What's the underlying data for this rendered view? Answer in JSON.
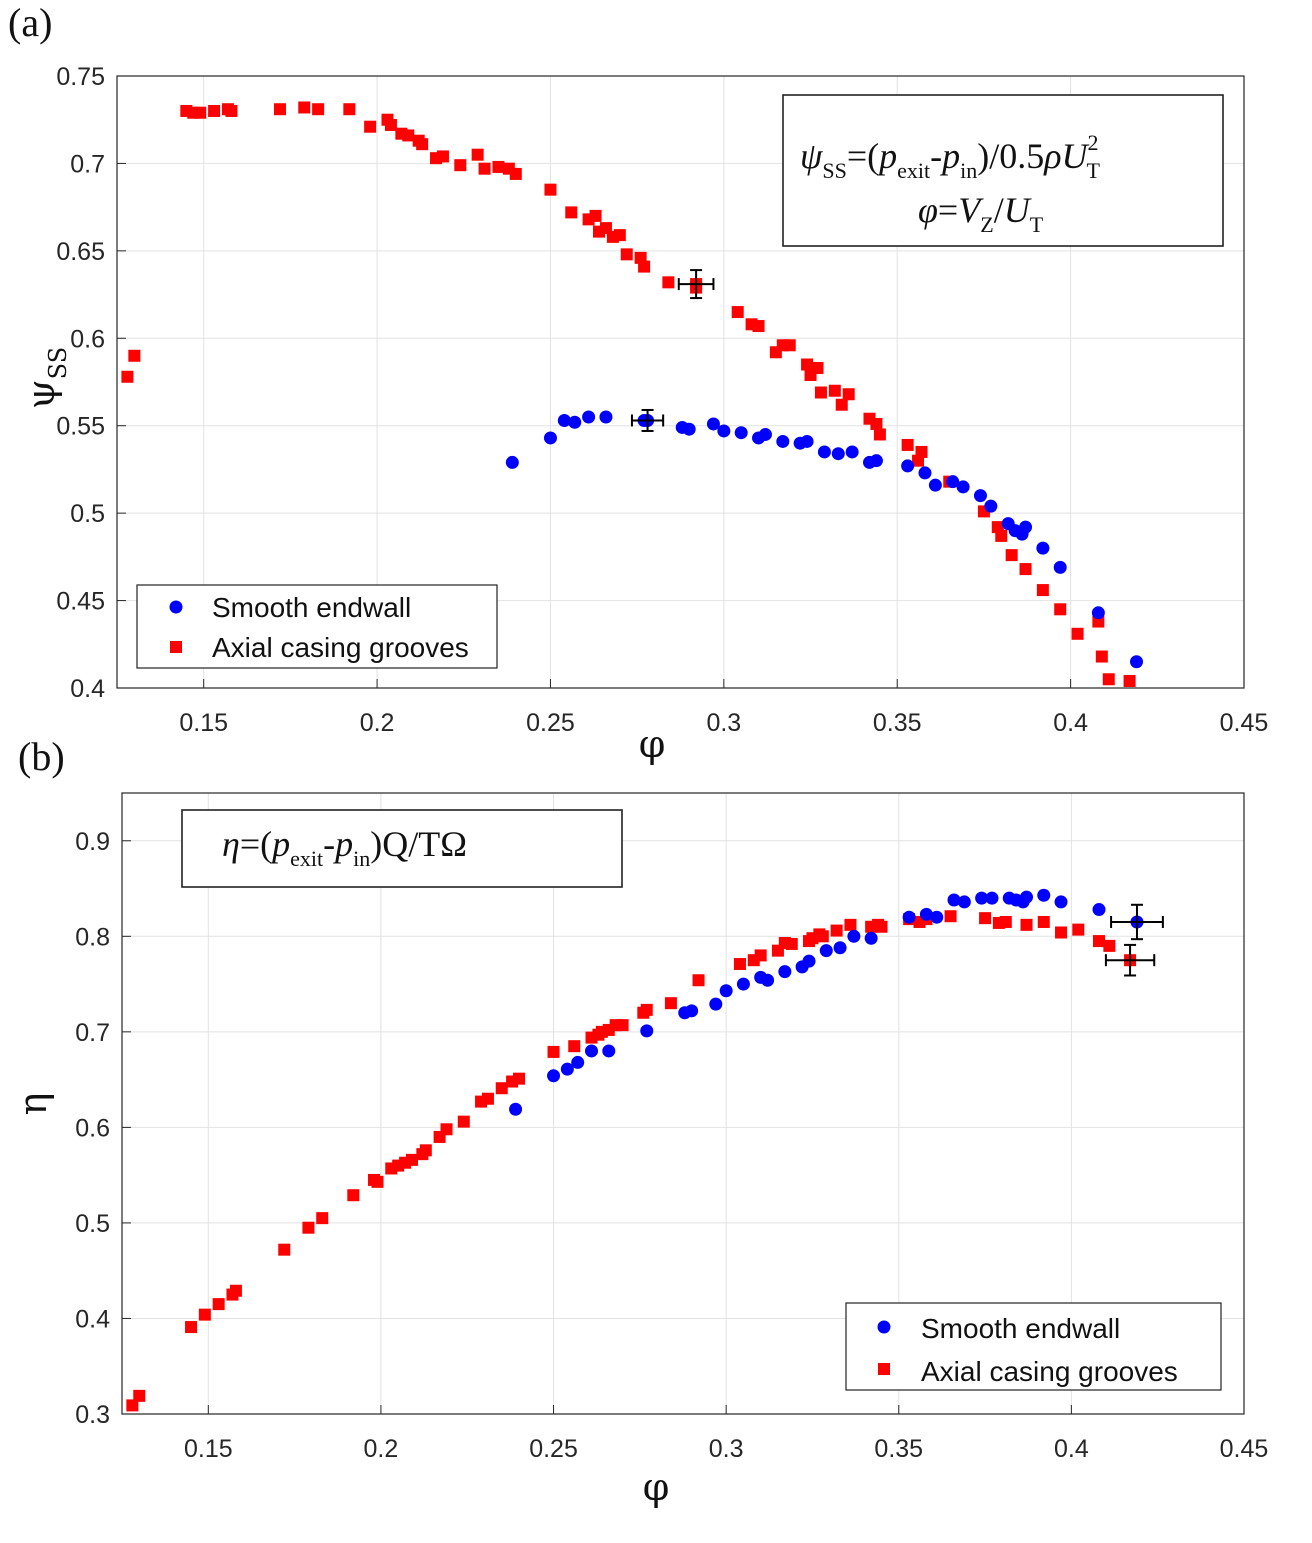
{
  "colors": {
    "smooth": "#0000ff",
    "grooves": "#ff0000",
    "errorbar": "#000000"
  },
  "chart_data": [
    {
      "type": "scatter",
      "panel_label": "(a)",
      "xlabel": "φ",
      "ylabel": "ψ",
      "ylabel_sub": "SS",
      "xlim": [
        0.125,
        0.45
      ],
      "ylim": [
        0.4,
        0.75
      ],
      "xticks": [
        0.15,
        0.2,
        0.25,
        0.3,
        0.35,
        0.4,
        0.45
      ],
      "xtick_labels": [
        "0.15",
        "0.2",
        "0.25",
        "0.3",
        "0.35",
        "0.4",
        "0.45"
      ],
      "yticks": [
        0.4,
        0.45,
        0.5,
        0.55,
        0.6,
        0.65,
        0.7,
        0.75
      ],
      "ytick_labels": [
        "0.4",
        "0.45",
        "0.5",
        "0.55",
        "0.6",
        "0.65",
        "0.7",
        "0.75"
      ],
      "legend": {
        "position": "bottom-left",
        "entries": [
          "Smooth endwall",
          "Axial casing grooves"
        ]
      },
      "annotation": {
        "line1": {
          "psi": "ψ",
          "psi_sub": "SS",
          "eq": "=(",
          "p1": "p",
          "p1_sub": "exit",
          "dash": "-",
          "p2": "p",
          "p2_sub": "in",
          "rest": ")/0.5",
          "rho": "ρ",
          "U": "U",
          "U_sub": "T",
          "U_sup": "2"
        },
        "line2": {
          "phi": "φ",
          "eq": "=",
          "V": "V",
          "V_sub": "Z",
          "slash": "/",
          "U": "U",
          "U_sub": "T"
        }
      },
      "series": [
        {
          "name": "Smooth endwall",
          "marker": "circle",
          "x": [
            0.239,
            0.25,
            0.254,
            0.257,
            0.261,
            0.266,
            0.277,
            0.288,
            0.29,
            0.297,
            0.3,
            0.305,
            0.31,
            0.312,
            0.317,
            0.322,
            0.324,
            0.329,
            0.333,
            0.337,
            0.342,
            0.344,
            0.353,
            0.358,
            0.361,
            0.366,
            0.369,
            0.374,
            0.377,
            0.382,
            0.384,
            0.386,
            0.387,
            0.392,
            0.397,
            0.408,
            0.419
          ],
          "y": [
            0.529,
            0.543,
            0.553,
            0.552,
            0.555,
            0.555,
            0.553,
            0.549,
            0.548,
            0.551,
            0.547,
            0.546,
            0.543,
            0.545,
            0.541,
            0.54,
            0.541,
            0.535,
            0.534,
            0.535,
            0.529,
            0.53,
            0.527,
            0.523,
            0.516,
            0.518,
            0.515,
            0.51,
            0.504,
            0.494,
            0.49,
            0.488,
            0.492,
            0.48,
            0.469,
            0.443,
            0.415
          ],
          "errorbar": {
            "x": 0.278,
            "y": 0.553,
            "xerr": 0.0045,
            "yerr": 0.006
          }
        },
        {
          "name": "Axial casing grooves",
          "marker": "square",
          "x": [
            0.128,
            0.13,
            0.145,
            0.147,
            0.149,
            0.153,
            0.157,
            0.158,
            0.172,
            0.179,
            0.183,
            0.192,
            0.198,
            0.203,
            0.204,
            0.207,
            0.209,
            0.212,
            0.213,
            0.217,
            0.219,
            0.224,
            0.229,
            0.231,
            0.235,
            0.238,
            0.24,
            0.25,
            0.256,
            0.261,
            0.263,
            0.264,
            0.266,
            0.268,
            0.27,
            0.272,
            0.276,
            0.277,
            0.284,
            0.292,
            0.304,
            0.308,
            0.31,
            0.315,
            0.317,
            0.319,
            0.324,
            0.325,
            0.327,
            0.328,
            0.332,
            0.334,
            0.336,
            0.342,
            0.344,
            0.345,
            0.353,
            0.356,
            0.357,
            0.365,
            0.375,
            0.379,
            0.38,
            0.383,
            0.387,
            0.392,
            0.397,
            0.402,
            0.408,
            0.409,
            0.411,
            0.417
          ],
          "y": [
            0.578,
            0.59,
            0.73,
            0.729,
            0.729,
            0.73,
            0.731,
            0.73,
            0.731,
            0.732,
            0.731,
            0.731,
            0.721,
            0.725,
            0.722,
            0.717,
            0.716,
            0.713,
            0.711,
            0.703,
            0.704,
            0.699,
            0.705,
            0.697,
            0.698,
            0.697,
            0.694,
            0.685,
            0.672,
            0.668,
            0.67,
            0.661,
            0.663,
            0.658,
            0.659,
            0.648,
            0.646,
            0.641,
            0.632,
            0.629,
            0.615,
            0.608,
            0.607,
            0.592,
            0.596,
            0.596,
            0.585,
            0.579,
            0.583,
            0.569,
            0.57,
            0.562,
            0.568,
            0.554,
            0.551,
            0.545,
            0.539,
            0.53,
            0.535,
            0.518,
            0.501,
            0.492,
            0.487,
            0.476,
            0.468,
            0.456,
            0.445,
            0.431,
            0.438,
            0.418,
            0.405,
            0.404
          ],
          "errorbar": {
            "x": 0.292,
            "y": 0.631,
            "xerr": 0.005,
            "yerr": 0.008
          }
        }
      ]
    },
    {
      "type": "scatter",
      "panel_label": "(b)",
      "xlabel": "φ",
      "ylabel": "η",
      "xlim": [
        0.125,
        0.45
      ],
      "ylim": [
        0.3,
        0.95
      ],
      "xticks": [
        0.15,
        0.2,
        0.25,
        0.3,
        0.35,
        0.4,
        0.45
      ],
      "xtick_labels": [
        "0.15",
        "0.2",
        "0.25",
        "0.3",
        "0.35",
        "0.4",
        "0.45"
      ],
      "yticks": [
        0.3,
        0.4,
        0.5,
        0.6,
        0.7,
        0.8,
        0.9
      ],
      "ytick_labels": [
        "0.3",
        "0.4",
        "0.5",
        "0.6",
        "0.7",
        "0.8",
        "0.9"
      ],
      "legend": {
        "position": "bottom-right",
        "entries": [
          "Smooth endwall",
          "Axial casing grooves"
        ]
      },
      "annotation": {
        "line1": {
          "eta": "η",
          "eq": "=(",
          "p1": "p",
          "p1_sub": "exit",
          "dash": "-",
          "p2": "p",
          "p2_sub": "in",
          "rest": ")Q/TΩ"
        }
      },
      "series": [
        {
          "name": "Smooth endwall",
          "marker": "circle",
          "x": [
            0.239,
            0.25,
            0.254,
            0.257,
            0.261,
            0.266,
            0.277,
            0.288,
            0.29,
            0.297,
            0.3,
            0.305,
            0.31,
            0.312,
            0.317,
            0.322,
            0.324,
            0.329,
            0.333,
            0.337,
            0.342,
            0.353,
            0.358,
            0.361,
            0.366,
            0.369,
            0.374,
            0.377,
            0.382,
            0.384,
            0.386,
            0.387,
            0.392,
            0.397,
            0.408
          ],
          "y": [
            0.619,
            0.654,
            0.661,
            0.668,
            0.68,
            0.68,
            0.701,
            0.72,
            0.722,
            0.729,
            0.743,
            0.75,
            0.757,
            0.754,
            0.763,
            0.768,
            0.774,
            0.785,
            0.788,
            0.8,
            0.798,
            0.82,
            0.823,
            0.82,
            0.838,
            0.836,
            0.84,
            0.84,
            0.84,
            0.838,
            0.836,
            0.841,
            0.843,
            0.836,
            0.828
          ],
          "errorbar": {
            "x": 0.419,
            "y": 0.815,
            "xerr": 0.0075,
            "yerr": 0.018
          }
        },
        {
          "name": "Axial casing grooves",
          "marker": "square",
          "x": [
            0.128,
            0.13,
            0.145,
            0.149,
            0.153,
            0.157,
            0.158,
            0.172,
            0.179,
            0.183,
            0.192,
            0.198,
            0.199,
            0.203,
            0.205,
            0.207,
            0.209,
            0.212,
            0.213,
            0.217,
            0.219,
            0.224,
            0.229,
            0.231,
            0.235,
            0.238,
            0.24,
            0.25,
            0.256,
            0.261,
            0.263,
            0.264,
            0.266,
            0.268,
            0.27,
            0.276,
            0.277,
            0.284,
            0.292,
            0.304,
            0.308,
            0.31,
            0.315,
            0.317,
            0.319,
            0.324,
            0.325,
            0.327,
            0.328,
            0.332,
            0.336,
            0.342,
            0.344,
            0.345,
            0.353,
            0.356,
            0.358,
            0.365,
            0.375,
            0.379,
            0.381,
            0.387,
            0.392,
            0.397,
            0.402,
            0.408,
            0.411
          ],
          "y": [
            0.309,
            0.319,
            0.391,
            0.404,
            0.415,
            0.425,
            0.429,
            0.472,
            0.495,
            0.505,
            0.529,
            0.545,
            0.543,
            0.557,
            0.56,
            0.563,
            0.566,
            0.572,
            0.576,
            0.59,
            0.598,
            0.606,
            0.627,
            0.63,
            0.641,
            0.648,
            0.651,
            0.679,
            0.685,
            0.694,
            0.697,
            0.7,
            0.702,
            0.707,
            0.707,
            0.72,
            0.723,
            0.73,
            0.754,
            0.771,
            0.775,
            0.78,
            0.785,
            0.793,
            0.792,
            0.795,
            0.798,
            0.802,
            0.8,
            0.806,
            0.812,
            0.81,
            0.812,
            0.81,
            0.818,
            0.815,
            0.818,
            0.821,
            0.819,
            0.814,
            0.815,
            0.812,
            0.815,
            0.804,
            0.807,
            0.795,
            0.79
          ],
          "errorbar": {
            "x": 0.417,
            "y": 0.775,
            "xerr": 0.007,
            "yerr": 0.016
          }
        }
      ]
    }
  ]
}
